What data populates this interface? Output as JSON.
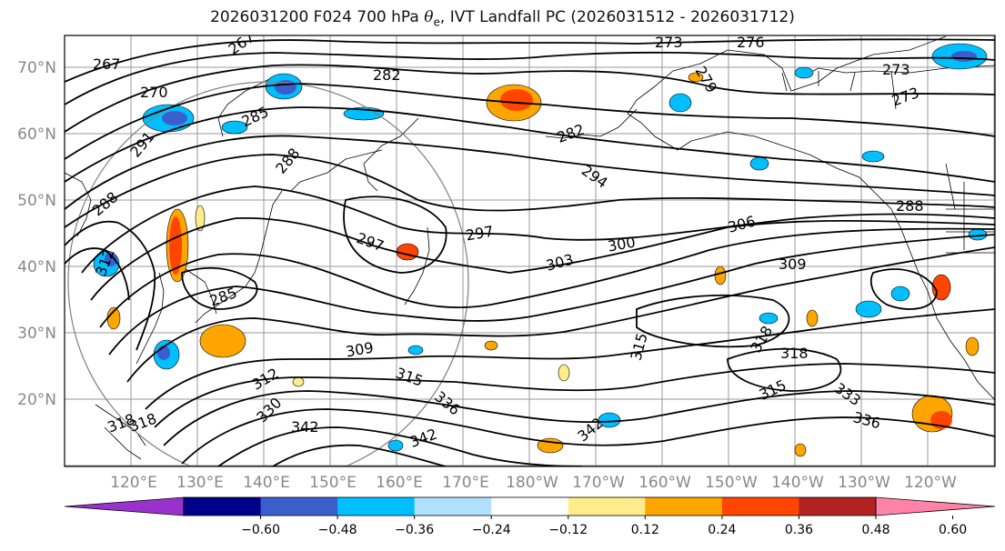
{
  "title": {
    "prefix": "2026031200 F024 700 hPa ",
    "theta": "θ",
    "sub": "e",
    "suffix": ", IVT Landfall PC (2026031512 - 2026031712)"
  },
  "axes": {
    "lat_labels": [
      "70°N",
      "60°N",
      "50°N",
      "40°N",
      "30°N",
      "20°N"
    ],
    "lon_labels": [
      "120°E",
      "130°E",
      "140°E",
      "150°E",
      "160°E",
      "170°E",
      "180°W",
      "170°W",
      "160°W",
      "150°W",
      "140°W",
      "130°W",
      "120°W"
    ]
  },
  "contour_labels": [
    "267",
    "270",
    "273",
    "276",
    "273",
    "273",
    "279",
    "282",
    "285",
    "282",
    "288",
    "291",
    "294",
    "297",
    "297",
    "300",
    "303",
    "306",
    "309",
    "312",
    "315",
    "318",
    "318",
    "315",
    "285",
    "288",
    "309",
    "312",
    "315",
    "318",
    "330",
    "333",
    "336",
    "336",
    "342",
    "342",
    "279",
    "276",
    "288"
  ],
  "colorbar": {
    "ticks": [
      "−0.60",
      "−0.48",
      "−0.36",
      "−0.24",
      "−0.12",
      "0.12",
      "0.24",
      "0.36",
      "0.48",
      "0.60"
    ],
    "colors": [
      "#9932cc",
      "#00008b",
      "#3a5fcd",
      "#00bfff",
      "#b0e2ff",
      "#ffffff",
      "#ffec8b",
      "#ffa500",
      "#ff4500",
      "#b22222",
      "#ff82ab"
    ]
  }
}
